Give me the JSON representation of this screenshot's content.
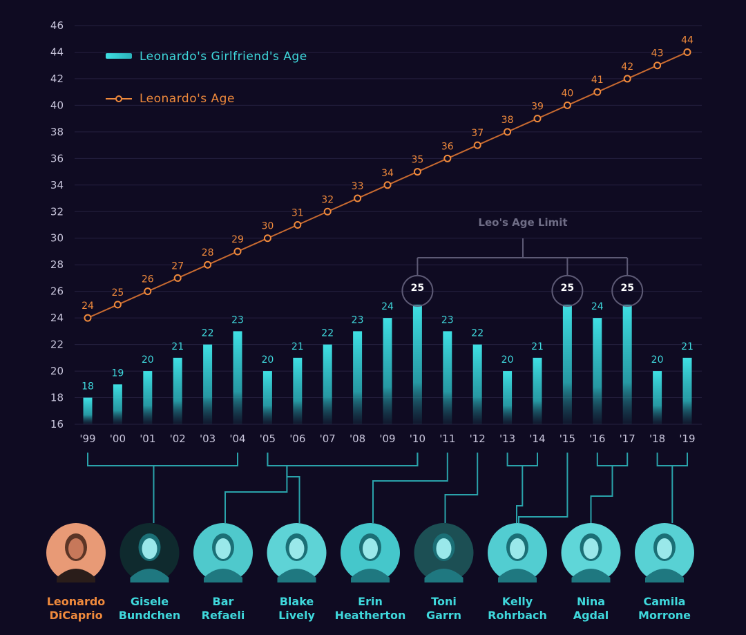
{
  "chart_data": {
    "type": "bar",
    "categories": [
      "'99",
      "'00",
      "'01",
      "'02",
      "'03",
      "'04",
      "'05",
      "'06",
      "'07",
      "'08",
      "'09",
      "'10",
      "'11",
      "'12",
      "'13",
      "'14",
      "'15",
      "'16",
      "'17",
      "'18",
      "'19"
    ],
    "ylim": [
      16,
      46
    ],
    "yticks": [
      16,
      18,
      20,
      22,
      24,
      26,
      28,
      30,
      32,
      34,
      36,
      38,
      40,
      42,
      44,
      46
    ],
    "grid": true,
    "legend_position": "top-left",
    "series": [
      {
        "name": "Leonardo's Girlfriend's Age",
        "type": "bar",
        "color": "#3fd8dc",
        "values": [
          18,
          19,
          20,
          21,
          22,
          23,
          20,
          21,
          22,
          23,
          24,
          25,
          23,
          22,
          20,
          21,
          25,
          24,
          25,
          20,
          21
        ]
      },
      {
        "name": "Leonardo's Age",
        "type": "line",
        "color": "#f08a3c",
        "values": [
          24,
          25,
          26,
          27,
          28,
          29,
          30,
          31,
          32,
          33,
          34,
          35,
          36,
          37,
          38,
          39,
          40,
          41,
          42,
          43,
          44
        ]
      }
    ],
    "annotation": {
      "text": "Leo's Age Limit",
      "value": 25,
      "highlighted_years": [
        "'10",
        "'15",
        "'17"
      ]
    }
  },
  "people": [
    {
      "first": "Leonardo",
      "last": "DiCaprio",
      "color": "#f08a3c",
      "photo_bg": "#e89a76",
      "kind": "leo"
    },
    {
      "first": "Gisele",
      "last": "Bundchen",
      "color": "#3fd8dc",
      "photo_bg": "#0f2a2e",
      "kind": "gf",
      "group": [
        0,
        5
      ]
    },
    {
      "first": "Bar",
      "last": "Refaeli",
      "color": "#3fd8dc",
      "photo_bg": "#4fc9cc",
      "kind": "gf",
      "group": [
        6,
        11
      ]
    },
    {
      "first": "Blake",
      "last": "Lively",
      "color": "#3fd8dc",
      "photo_bg": "#5ed3d6",
      "kind": "gf",
      "group": [
        6,
        11
      ]
    },
    {
      "first": "Erin",
      "last": "Heatherton",
      "color": "#3fd8dc",
      "photo_bg": "#45c7cb",
      "kind": "gf",
      "group": [
        12,
        12
      ]
    },
    {
      "first": "Toni",
      "last": "Garrn",
      "color": "#3fd8dc",
      "photo_bg": "#1c4f54",
      "kind": "gf",
      "group": [
        13,
        13
      ]
    },
    {
      "first": "Kelly",
      "last": "Rohrbach",
      "color": "#3fd8dc",
      "photo_bg": "#52cdd1",
      "kind": "gf",
      "group": [
        14,
        15
      ]
    },
    {
      "first": "Nina",
      "last": "Agdal",
      "color": "#3fd8dc",
      "photo_bg": "#5fd6d8",
      "kind": "gf",
      "group": [
        17,
        18
      ]
    },
    {
      "first": "Camila",
      "last": "Morrone",
      "color": "#3fd8dc",
      "photo_bg": "#58d1d4",
      "kind": "gf",
      "group": [
        19,
        20
      ]
    }
  ]
}
